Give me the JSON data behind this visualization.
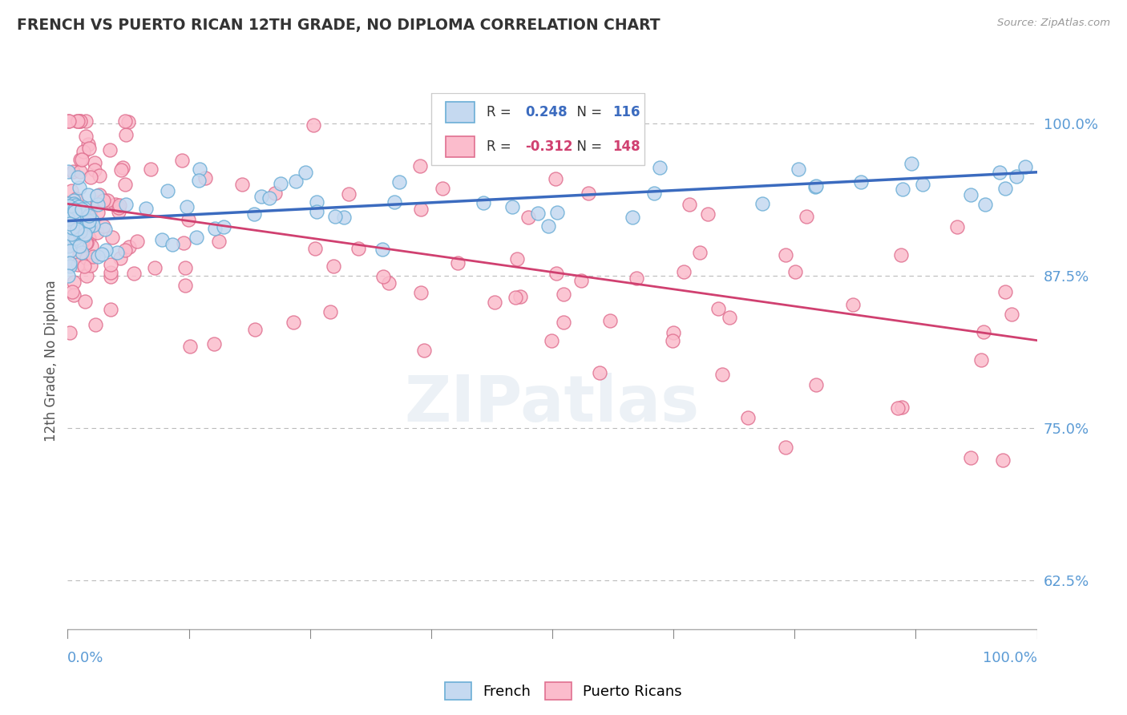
{
  "title": "FRENCH VS PUERTO RICAN 12TH GRADE, NO DIPLOMA CORRELATION CHART",
  "source": "Source: ZipAtlas.com",
  "ylabel": "12th Grade, No Diploma",
  "yticks": [
    0.625,
    0.75,
    0.875,
    1.0
  ],
  "ytick_labels": [
    "62.5%",
    "75.0%",
    "87.5%",
    "100.0%"
  ],
  "xrange": [
    0.0,
    1.0
  ],
  "yrange": [
    0.585,
    1.025
  ],
  "french_R": 0.248,
  "french_N": 116,
  "pr_R": -0.312,
  "pr_N": 148,
  "french_face_color": "#c5d9f0",
  "french_edge_color": "#6baed6",
  "pr_face_color": "#fbbccc",
  "pr_edge_color": "#e07090",
  "french_line_color": "#3b6bbf",
  "pr_line_color": "#d04070",
  "bg_color": "#ffffff",
  "grid_color": "#bbbbbb",
  "title_color": "#333333",
  "axis_label_color": "#5b9bd5",
  "source_color": "#999999",
  "french_trend_y0": 0.92,
  "french_trend_y1": 0.96,
  "pr_trend_y0": 0.934,
  "pr_trend_y1": 0.822
}
